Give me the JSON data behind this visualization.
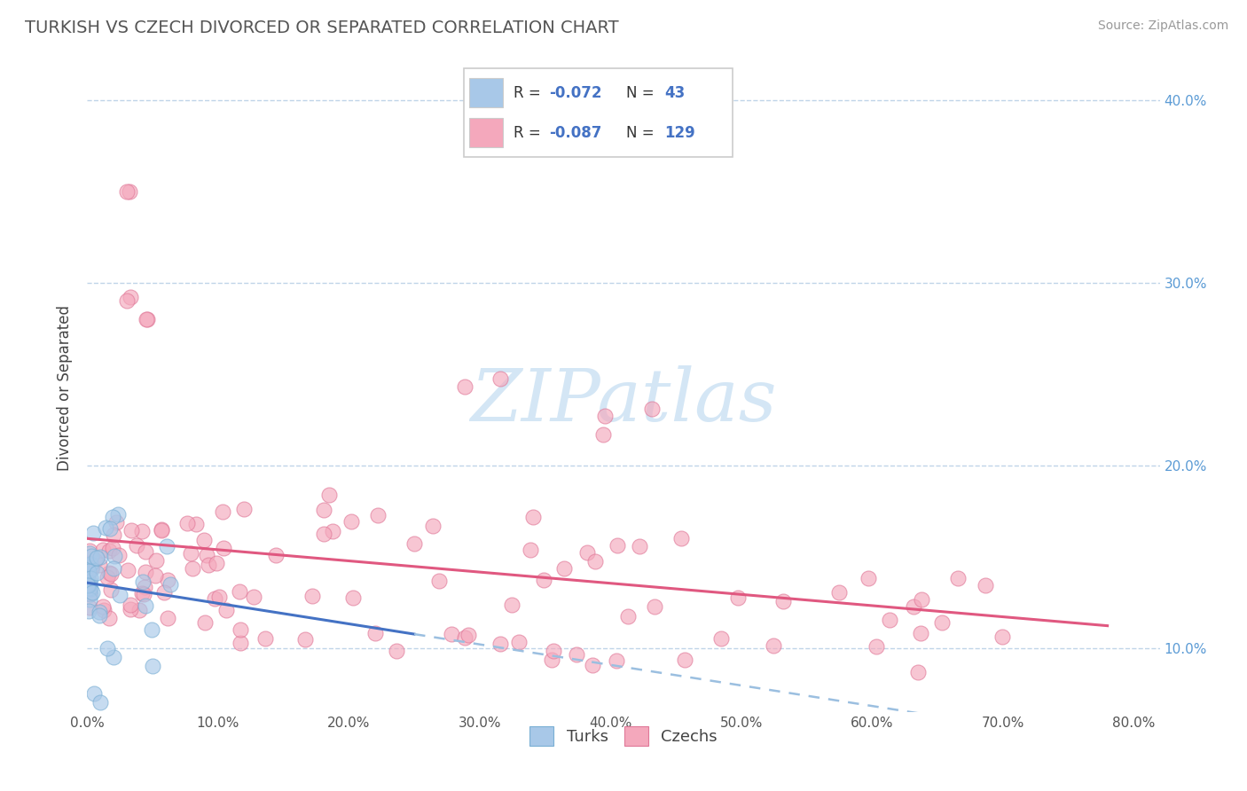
{
  "title": "TURKISH VS CZECH DIVORCED OR SEPARATED CORRELATION CHART",
  "source": "Source: ZipAtlas.com",
  "ylabel_label": "Divorced or Separated",
  "r_turks": -0.072,
  "n_turks": 43,
  "r_czechs": -0.087,
  "n_czechs": 129,
  "turk_color": "#a8c8e8",
  "turk_edge_color": "#7aafd4",
  "czech_color": "#f4a8bc",
  "czech_edge_color": "#e07898",
  "turk_line_color": "#4472c4",
  "turk_dash_color": "#9bbfe0",
  "czech_line_color": "#e05880",
  "background_color": "#ffffff",
  "grid_color": "#c0d4e8",
  "watermark_color": "#d0e4f4",
  "watermark_text": "ZIPatlas",
  "xlim": [
    0.0,
    0.82
  ],
  "ylim": [
    0.065,
    0.42
  ],
  "yticks": [
    0.1,
    0.2,
    0.3,
    0.4
  ],
  "ytick_labels": [
    "10.0%",
    "20.0%",
    "30.0%",
    "40.0%"
  ],
  "xticks": [
    0.0,
    0.1,
    0.2,
    0.3,
    0.4,
    0.5,
    0.6,
    0.7,
    0.8
  ],
  "xtick_labels": [
    "0.0%",
    "10.0%",
    "20.0%",
    "30.0%",
    "40.0%",
    "50.0%",
    "60.0%",
    "70.0%",
    "80.0%"
  ]
}
